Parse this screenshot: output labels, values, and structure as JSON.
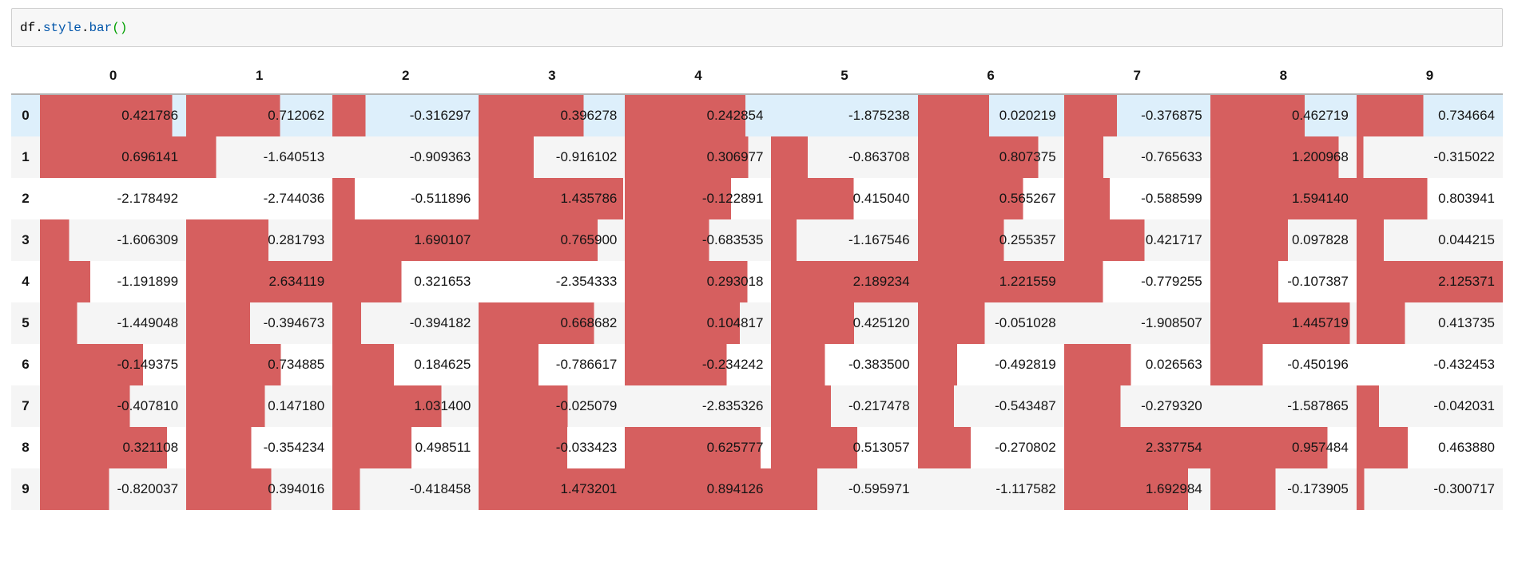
{
  "code_cell": {
    "source": "df.style.bar()",
    "tokens": [
      {
        "text": "df",
        "color": "#000000",
        "kind": "variable"
      },
      {
        "text": ".",
        "color": "#000000",
        "kind": "operator"
      },
      {
        "text": "style",
        "color": "#0055aa",
        "kind": "property"
      },
      {
        "text": ".",
        "color": "#000000",
        "kind": "operator"
      },
      {
        "text": "bar",
        "color": "#0055aa",
        "kind": "property"
      },
      {
        "text": "()",
        "color": "#00a000",
        "kind": "bracket"
      }
    ]
  },
  "dataframe": {
    "bar_color": "#d65f5f",
    "stripe_color": "#f5f5f5",
    "highlight_color": "#ddeffb",
    "highlighted_row_index": 0,
    "index_corner": "",
    "columns": [
      "0",
      "1",
      "2",
      "3",
      "4",
      "5",
      "6",
      "7",
      "8",
      "9"
    ],
    "rows": [
      {
        "index": "0",
        "values": [
          "0.421786",
          "0.712062",
          "-0.316297",
          "0.396278",
          "0.242854",
          "-1.875238",
          "0.020219",
          "-0.376875",
          "0.462719",
          "0.734664"
        ]
      },
      {
        "index": "1",
        "values": [
          "0.696141",
          "-1.640513",
          "-0.909363",
          "-0.916102",
          "0.306977",
          "-0.863708",
          "0.807375",
          "-0.765633",
          "1.200968",
          "-0.315022"
        ]
      },
      {
        "index": "2",
        "values": [
          "-2.178492",
          "-2.744036",
          "-0.511896",
          "1.435786",
          "-0.122891",
          "0.415040",
          "0.565267",
          "-0.588599",
          "1.594140",
          "0.803941"
        ]
      },
      {
        "index": "3",
        "values": [
          "-1.606309",
          "0.281793",
          "1.690107",
          "0.765900",
          "-0.683535",
          "-1.167546",
          "0.255357",
          "0.421717",
          "0.097828",
          "0.044215"
        ]
      },
      {
        "index": "4",
        "values": [
          "-1.191899",
          "2.634119",
          "0.321653",
          "-2.354333",
          "0.293018",
          "2.189234",
          "1.221559",
          "-0.779255",
          "-0.107387",
          "2.125371"
        ]
      },
      {
        "index": "5",
        "values": [
          "-1.449048",
          "-0.394673",
          "-0.394182",
          "0.668682",
          "0.104817",
          "0.425120",
          "-0.051028",
          "-1.908507",
          "1.445719",
          "0.413735"
        ]
      },
      {
        "index": "6",
        "values": [
          "-0.149375",
          "0.734885",
          "0.184625",
          "-0.786617",
          "-0.234242",
          "-0.383500",
          "-0.492819",
          "0.026563",
          "-0.450196",
          "-0.432453"
        ]
      },
      {
        "index": "7",
        "values": [
          "-0.407810",
          "0.147180",
          "1.031400",
          "-0.025079",
          "-2.835326",
          "-0.217478",
          "-0.543487",
          "-0.279320",
          "-1.587865",
          "-0.042031"
        ]
      },
      {
        "index": "8",
        "values": [
          "0.321108",
          "-0.354234",
          "0.498511",
          "-0.033423",
          "0.625777",
          "0.513057",
          "-0.270802",
          "2.337754",
          "0.957484",
          "0.463880"
        ]
      },
      {
        "index": "9",
        "values": [
          "-0.820037",
          "0.394016",
          "-0.418458",
          "1.473201",
          "0.894126",
          "-0.595971",
          "-1.117582",
          "1.692984",
          "-0.173905",
          "-0.300717"
        ]
      }
    ]
  }
}
